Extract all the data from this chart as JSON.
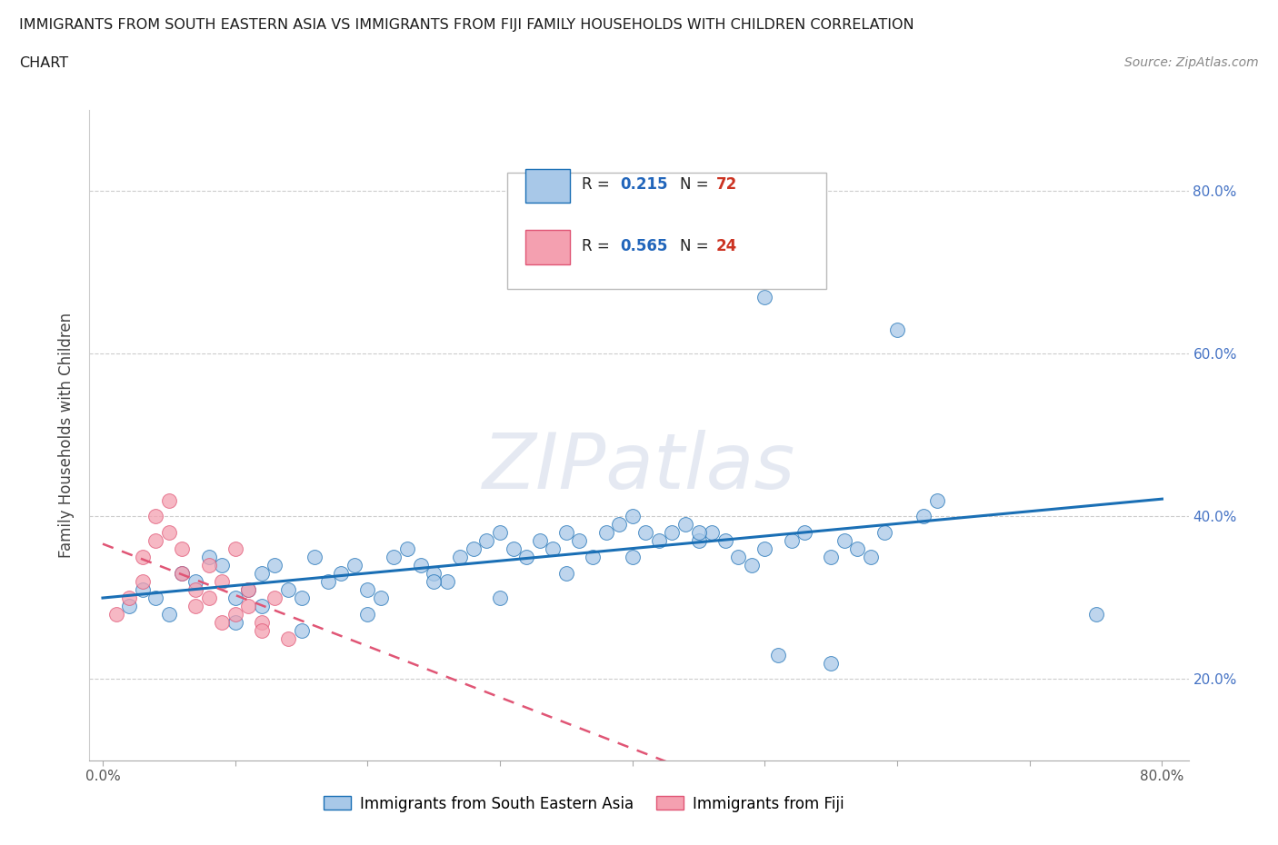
{
  "title_line1": "IMMIGRANTS FROM SOUTH EASTERN ASIA VS IMMIGRANTS FROM FIJI FAMILY HOUSEHOLDS WITH CHILDREN CORRELATION",
  "title_line2": "CHART",
  "source": "Source: ZipAtlas.com",
  "ylabel": "Family Households with Children",
  "xlim": [
    -0.01,
    0.82
  ],
  "ylim": [
    0.1,
    0.9
  ],
  "scatter_blue_color": "#a8c8e8",
  "scatter_pink_color": "#f4a0b0",
  "line_blue_color": "#1a6fb5",
  "line_pink_color": "#e05575",
  "background_color": "#ffffff",
  "blue_R": 0.215,
  "blue_N": 72,
  "pink_R": 0.565,
  "pink_N": 24,
  "watermark_text": "ZIPatlas",
  "watermark_color": "#d0d8e8",
  "legend_R_color": "#2266bb",
  "legend_N_color": "#cc3322",
  "grid_color": "#cccccc",
  "ytick_color": "#4472c4",
  "bottom_legend_labels": [
    "Immigrants from South Eastern Asia",
    "Immigrants from Fiji"
  ],
  "blue_x": [
    0.02,
    0.03,
    0.04,
    0.05,
    0.06,
    0.07,
    0.08,
    0.09,
    0.1,
    0.11,
    0.12,
    0.13,
    0.14,
    0.15,
    0.16,
    0.17,
    0.18,
    0.19,
    0.2,
    0.21,
    0.22,
    0.23,
    0.24,
    0.25,
    0.26,
    0.27,
    0.28,
    0.29,
    0.3,
    0.31,
    0.32,
    0.33,
    0.34,
    0.35,
    0.36,
    0.37,
    0.38,
    0.39,
    0.4,
    0.41,
    0.42,
    0.43,
    0.44,
    0.45,
    0.46,
    0.47,
    0.48,
    0.49,
    0.5,
    0.51,
    0.52,
    0.53,
    0.55,
    0.56,
    0.57,
    0.58,
    0.59,
    0.6,
    0.62,
    0.63,
    0.1,
    0.12,
    0.15,
    0.2,
    0.25,
    0.3,
    0.35,
    0.4,
    0.45,
    0.5,
    0.55,
    0.75
  ],
  "blue_y": [
    0.29,
    0.31,
    0.3,
    0.28,
    0.33,
    0.32,
    0.35,
    0.34,
    0.3,
    0.31,
    0.33,
    0.34,
    0.31,
    0.3,
    0.35,
    0.32,
    0.33,
    0.34,
    0.31,
    0.3,
    0.35,
    0.36,
    0.34,
    0.33,
    0.32,
    0.35,
    0.36,
    0.37,
    0.38,
    0.36,
    0.35,
    0.37,
    0.36,
    0.38,
    0.37,
    0.35,
    0.38,
    0.39,
    0.4,
    0.38,
    0.37,
    0.38,
    0.39,
    0.37,
    0.38,
    0.37,
    0.35,
    0.34,
    0.67,
    0.23,
    0.37,
    0.38,
    0.35,
    0.37,
    0.36,
    0.35,
    0.38,
    0.63,
    0.4,
    0.42,
    0.27,
    0.29,
    0.26,
    0.28,
    0.32,
    0.3,
    0.33,
    0.35,
    0.38,
    0.36,
    0.22,
    0.28
  ],
  "pink_x": [
    0.01,
    0.02,
    0.03,
    0.03,
    0.04,
    0.04,
    0.05,
    0.05,
    0.06,
    0.06,
    0.07,
    0.07,
    0.08,
    0.08,
    0.09,
    0.09,
    0.1,
    0.1,
    0.11,
    0.11,
    0.12,
    0.12,
    0.13,
    0.14
  ],
  "pink_y": [
    0.28,
    0.3,
    0.32,
    0.35,
    0.37,
    0.4,
    0.42,
    0.38,
    0.33,
    0.36,
    0.29,
    0.31,
    0.3,
    0.34,
    0.32,
    0.27,
    0.36,
    0.28,
    0.31,
    0.29,
    0.27,
    0.26,
    0.3,
    0.25
  ]
}
